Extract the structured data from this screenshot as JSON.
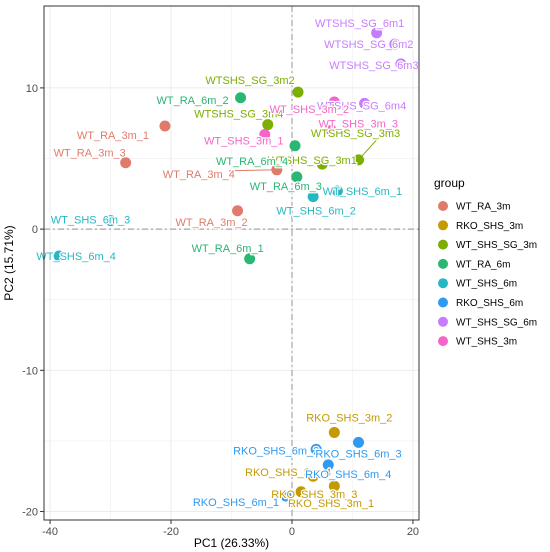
{
  "chart_data": {
    "type": "scatter",
    "title": "",
    "xlabel": "PC1 (26.33%)",
    "ylabel": "PC2 (15.71%)",
    "xlim": [
      -41,
      21
    ],
    "ylim": [
      -20.6,
      15.8
    ],
    "x_ticks": [
      -40,
      -20,
      0,
      20
    ],
    "y_ticks": [
      -20,
      -10,
      0,
      10
    ],
    "grid": true,
    "reference_lines": {
      "x": 0,
      "y": 0,
      "style": "dashed"
    },
    "legend": {
      "title": "group",
      "placement": "right"
    },
    "groups": [
      {
        "name": "WT_RA_3m",
        "color": "#E07B6B"
      },
      {
        "name": "RKO_SHS_3m",
        "color": "#C49A00"
      },
      {
        "name": "WT_SHS_SG_3m",
        "color": "#7CAE00"
      },
      {
        "name": "WT_RA_6m",
        "color": "#2AB673"
      },
      {
        "name": "WT_SHS_6m",
        "color": "#25B8C4"
      },
      {
        "name": "RKO_SHS_6m",
        "color": "#2E9AF2"
      },
      {
        "name": "WT_SHS_SG_6m",
        "color": "#C77CFF"
      },
      {
        "name": "WT_SHS_3m",
        "color": "#F564C8"
      }
    ],
    "points": [
      {
        "label": "WT_RA_3m_1",
        "group": "WT_RA_3m",
        "x": -21.0,
        "y": 7.3
      },
      {
        "label": "WT_RA_3m_3",
        "group": "WT_RA_3m",
        "x": -27.5,
        "y": 4.7
      },
      {
        "label": "WT_RA_3m_4",
        "group": "WT_RA_3m",
        "x": -2.5,
        "y": 4.2
      },
      {
        "label": "WT_RA_3m_2",
        "group": "WT_RA_3m",
        "x": -9.0,
        "y": 1.3
      },
      {
        "label": "RKO_SHS_3m_2",
        "group": "RKO_SHS_3m",
        "x": 7.0,
        "y": -14.4
      },
      {
        "label": "RKO_SHS_3m_4",
        "group": "RKO_SHS_3m",
        "x": 3.5,
        "y": -17.5
      },
      {
        "label": "RKO_SHS_3m_3",
        "group": "RKO_SHS_3m",
        "x": 7.0,
        "y": -18.2
      },
      {
        "label": "RKO_SHS_3m_1",
        "group": "RKO_SHS_3m",
        "x": 1.5,
        "y": -18.6
      },
      {
        "label": "WTSHS_SG_3m2",
        "group": "WT_SHS_SG_3m",
        "x": 1.0,
        "y": 9.7
      },
      {
        "label": "WTSHS_SG_3m4",
        "group": "WT_SHS_SG_3m",
        "x": -4.0,
        "y": 7.4
      },
      {
        "label": "WTSHS_SG_3m3",
        "group": "WT_SHS_SG_3m",
        "x": 11.0,
        "y": 4.9
      },
      {
        "label": "WTSHS_SG_3m1",
        "group": "WT_SHS_SG_3m",
        "x": 5.0,
        "y": 4.6
      },
      {
        "label": "WT_RA_6m_2",
        "group": "WT_RA_6m",
        "x": -8.5,
        "y": 9.3
      },
      {
        "label": "WT_RA_6m_4",
        "group": "WT_RA_6m",
        "x": 0.5,
        "y": 5.9
      },
      {
        "label": "WT_RA_6m_3",
        "group": "WT_RA_6m",
        "x": 0.8,
        "y": 3.7
      },
      {
        "label": "WT_RA_6m_1",
        "group": "WT_RA_6m",
        "x": -7.0,
        "y": -2.1
      },
      {
        "label": "WT_SHS_6m_1",
        "group": "WT_SHS_6m",
        "x": 7.5,
        "y": 2.7
      },
      {
        "label": "WT_SHS_6m_2",
        "group": "WT_SHS_6m",
        "x": 3.5,
        "y": 2.3
      },
      {
        "label": "WT_SHS_6m_3",
        "group": "WT_SHS_6m",
        "x": -30.0,
        "y": 0.6
      },
      {
        "label": "WT_SHS_6m_4",
        "group": "WT_SHS_6m",
        "x": -38.5,
        "y": -1.9
      },
      {
        "label": "RKO_SHS_6m_2",
        "group": "RKO_SHS_6m",
        "x": 4.0,
        "y": -15.6
      },
      {
        "label": "RKO_SHS_6m_3",
        "group": "RKO_SHS_6m",
        "x": 11.0,
        "y": -15.1
      },
      {
        "label": "RKO_SHS_6m_4",
        "group": "RKO_SHS_6m",
        "x": 6.0,
        "y": -16.7
      },
      {
        "label": "RKO_SHS_6m_1",
        "group": "RKO_SHS_6m",
        "x": -1.0,
        "y": -18.9
      },
      {
        "label": "WTSHS_SG_6m1",
        "group": "WT_SHS_SG_6m",
        "x": 14.0,
        "y": 13.9
      },
      {
        "label": "WTSHS_SG_6m2",
        "group": "WT_SHS_SG_6m",
        "x": 17.0,
        "y": 13.1
      },
      {
        "label": "WTSHS_SG_6m3",
        "group": "WT_SHS_SG_6m",
        "x": 18.0,
        "y": 11.7
      },
      {
        "label": "WTSHS_SG_6m4",
        "group": "WT_SHS_SG_6m",
        "x": 12.0,
        "y": 8.9
      },
      {
        "label": "WT_SHS_3m_2",
        "group": "WT_SHS_3m",
        "x": 7.0,
        "y": 9.0
      },
      {
        "label": "WT_SHS_3m_1",
        "group": "WT_SHS_3m",
        "x": -4.5,
        "y": 6.7
      },
      {
        "label": "WT_SHS_3m_3",
        "group": "WT_SHS_3m",
        "x": 6.5,
        "y": 7.0
      }
    ]
  }
}
